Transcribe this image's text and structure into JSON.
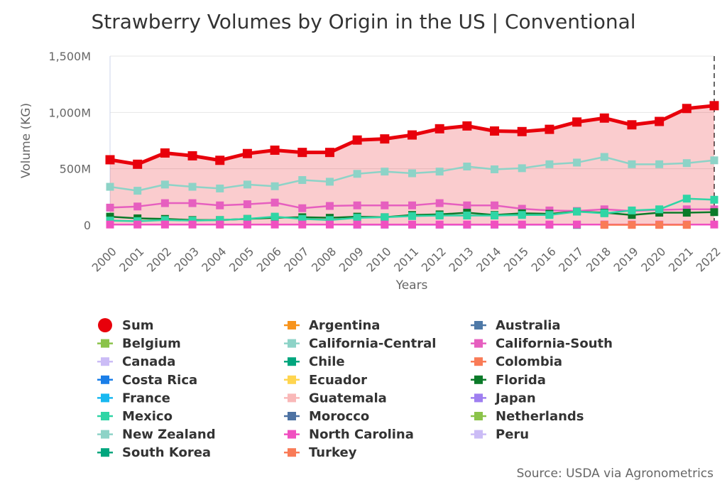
{
  "chart_data": {
    "type": "line",
    "title": "Strawberry Volumes by Origin in the US | Conventional",
    "xlabel": "Years",
    "ylabel": "Volume (KG)",
    "ylim": [
      0,
      1500000000
    ],
    "y_ticks": [
      {
        "value": 0,
        "label": "0"
      },
      {
        "value": 500000000,
        "label": "500M"
      },
      {
        "value": 1000000000,
        "label": "1,000M"
      },
      {
        "value": 1500000000,
        "label": "1,500M"
      }
    ],
    "x": [
      "2000",
      "2001",
      "2002",
      "2003",
      "2004",
      "2005",
      "2006",
      "2007",
      "2008",
      "2009",
      "2010",
      "2011",
      "2012",
      "2013",
      "2014",
      "2015",
      "2016",
      "2017",
      "2018",
      "2019",
      "2020",
      "2021",
      "2022"
    ],
    "grid": true,
    "legend_position": "bottom",
    "source": "Source: USDA via Agronometrics",
    "series": [
      {
        "name": "Sum",
        "color": "#e8000b",
        "marker": "circle",
        "area": true,
        "values": [
          580000000,
          540000000,
          640000000,
          615000000,
          575000000,
          635000000,
          665000000,
          645000000,
          645000000,
          755000000,
          765000000,
          800000000,
          855000000,
          880000000,
          835000000,
          830000000,
          850000000,
          915000000,
          950000000,
          890000000,
          920000000,
          1035000000,
          1060000000
        ]
      },
      {
        "name": "Argentina",
        "color": "#f7941d",
        "marker": "square",
        "values": [
          null,
          null,
          null,
          null,
          null,
          null,
          null,
          null,
          null,
          null,
          null,
          null,
          null,
          null,
          null,
          null,
          null,
          null,
          null,
          null,
          null,
          null,
          null
        ]
      },
      {
        "name": "Australia",
        "color": "#4e79a7",
        "marker": "square",
        "values": [
          null,
          null,
          null,
          null,
          null,
          null,
          null,
          null,
          null,
          null,
          null,
          null,
          null,
          null,
          null,
          null,
          null,
          null,
          null,
          null,
          null,
          null,
          null
        ]
      },
      {
        "name": "Belgium",
        "color": "#8bc34a",
        "marker": "square",
        "values": [
          null,
          null,
          null,
          null,
          null,
          null,
          null,
          null,
          null,
          null,
          null,
          null,
          null,
          null,
          null,
          null,
          null,
          null,
          null,
          null,
          null,
          null,
          null
        ]
      },
      {
        "name": "California-Central",
        "color": "#8dd3c7",
        "marker": "square",
        "values": [
          340000000,
          305000000,
          360000000,
          340000000,
          325000000,
          360000000,
          345000000,
          400000000,
          385000000,
          455000000,
          475000000,
          460000000,
          475000000,
          520000000,
          495000000,
          505000000,
          540000000,
          555000000,
          605000000,
          540000000,
          540000000,
          550000000,
          575000000
        ]
      },
      {
        "name": "California-South",
        "color": "#e65fbf",
        "marker": "square",
        "values": [
          155000000,
          165000000,
          195000000,
          195000000,
          175000000,
          185000000,
          200000000,
          150000000,
          170000000,
          175000000,
          175000000,
          175000000,
          195000000,
          175000000,
          175000000,
          145000000,
          130000000,
          125000000,
          140000000,
          125000000,
          135000000,
          140000000,
          140000000
        ]
      },
      {
        "name": "Canada",
        "color": "#cbbcf6",
        "marker": "square",
        "values": [
          null,
          null,
          null,
          null,
          null,
          null,
          null,
          null,
          null,
          2000000,
          2000000,
          2000000,
          2000000,
          2000000,
          2000000,
          2000000,
          2000000,
          null,
          null,
          null,
          null,
          null,
          null
        ]
      },
      {
        "name": "Chile",
        "color": "#00a67e",
        "marker": "square",
        "values": [
          null,
          null,
          null,
          null,
          null,
          null,
          null,
          null,
          null,
          null,
          null,
          null,
          null,
          null,
          null,
          null,
          null,
          2000000,
          null,
          null,
          null,
          null,
          null
        ]
      },
      {
        "name": "Colombia",
        "color": "#f97b57",
        "marker": "square",
        "values": [
          null,
          null,
          null,
          null,
          null,
          null,
          null,
          null,
          null,
          null,
          null,
          null,
          null,
          null,
          null,
          null,
          null,
          null,
          null,
          null,
          null,
          null,
          null
        ]
      },
      {
        "name": "Costa Rica",
        "color": "#1a7ee8",
        "marker": "square",
        "values": [
          null,
          null,
          null,
          null,
          null,
          null,
          null,
          null,
          null,
          null,
          null,
          null,
          null,
          null,
          null,
          null,
          null,
          null,
          null,
          null,
          null,
          null,
          null
        ]
      },
      {
        "name": "Ecuador",
        "color": "#ffd54f",
        "marker": "square",
        "values": [
          null,
          null,
          null,
          null,
          null,
          null,
          null,
          null,
          null,
          null,
          null,
          null,
          null,
          null,
          null,
          null,
          null,
          null,
          null,
          null,
          null,
          null,
          null
        ]
      },
      {
        "name": "Florida",
        "color": "#0b7a29",
        "marker": "square",
        "values": [
          75000000,
          60000000,
          55000000,
          45000000,
          45000000,
          55000000,
          65000000,
          70000000,
          65000000,
          75000000,
          70000000,
          90000000,
          95000000,
          110000000,
          90000000,
          105000000,
          100000000,
          120000000,
          110000000,
          90000000,
          110000000,
          110000000,
          115000000
        ]
      },
      {
        "name": "France",
        "color": "#19b8f0",
        "marker": "square",
        "values": [
          null,
          null,
          null,
          null,
          null,
          null,
          null,
          null,
          null,
          null,
          null,
          null,
          null,
          null,
          null,
          null,
          null,
          null,
          null,
          null,
          null,
          null,
          null
        ]
      },
      {
        "name": "Guatemala",
        "color": "#f9b8b8",
        "marker": "square",
        "values": [
          null,
          null,
          null,
          null,
          null,
          null,
          null,
          null,
          null,
          null,
          null,
          null,
          null,
          null,
          null,
          null,
          null,
          null,
          null,
          null,
          null,
          null,
          null
        ]
      },
      {
        "name": "Japan",
        "color": "#9f7ff0",
        "marker": "square",
        "values": [
          null,
          null,
          null,
          null,
          null,
          null,
          null,
          null,
          null,
          null,
          null,
          null,
          null,
          null,
          null,
          null,
          null,
          null,
          null,
          null,
          null,
          null,
          null
        ]
      },
      {
        "name": "Mexico",
        "color": "#2fd5a5",
        "marker": "square",
        "values": [
          40000000,
          35000000,
          45000000,
          40000000,
          45000000,
          55000000,
          75000000,
          55000000,
          45000000,
          65000000,
          70000000,
          80000000,
          85000000,
          85000000,
          85000000,
          90000000,
          90000000,
          120000000,
          105000000,
          130000000,
          140000000,
          235000000,
          225000000
        ]
      },
      {
        "name": "Morocco",
        "color": "#4d72a3",
        "marker": "square",
        "values": [
          null,
          null,
          null,
          null,
          null,
          null,
          null,
          null,
          null,
          null,
          null,
          null,
          null,
          null,
          null,
          null,
          null,
          null,
          null,
          null,
          null,
          null,
          null
        ]
      },
      {
        "name": "Netherlands",
        "color": "#8bc34a",
        "marker": "square",
        "values": [
          null,
          null,
          null,
          null,
          null,
          null,
          null,
          null,
          null,
          null,
          null,
          null,
          null,
          null,
          null,
          null,
          null,
          null,
          null,
          null,
          null,
          null,
          null
        ]
      },
      {
        "name": "New Zealand",
        "color": "#8dd3c7",
        "marker": "square",
        "values": [
          null,
          null,
          null,
          null,
          null,
          null,
          null,
          null,
          null,
          null,
          null,
          null,
          null,
          null,
          null,
          null,
          null,
          null,
          null,
          null,
          null,
          null,
          null
        ]
      },
      {
        "name": "North Carolina",
        "color": "#f050c0",
        "marker": "square",
        "values": [
          5000000,
          5000000,
          5000000,
          5000000,
          5000000,
          5000000,
          5000000,
          5000000,
          5000000,
          5000000,
          5000000,
          5000000,
          5000000,
          5000000,
          5000000,
          5000000,
          5000000,
          5000000,
          5000000,
          5000000,
          5000000,
          5000000,
          5000000
        ]
      },
      {
        "name": "Peru",
        "color": "#cbbcf6",
        "marker": "square",
        "values": [
          null,
          null,
          null,
          null,
          null,
          null,
          null,
          null,
          null,
          null,
          null,
          null,
          null,
          null,
          null,
          null,
          null,
          null,
          null,
          null,
          null,
          null,
          null
        ]
      },
      {
        "name": "South Korea",
        "color": "#00a67e",
        "marker": "square",
        "values": [
          null,
          null,
          null,
          null,
          null,
          null,
          null,
          null,
          null,
          null,
          null,
          null,
          null,
          null,
          null,
          null,
          null,
          null,
          null,
          null,
          null,
          null,
          null
        ]
      },
      {
        "name": "Turkey",
        "color": "#f97b57",
        "marker": "square",
        "values": [
          null,
          null,
          null,
          null,
          null,
          null,
          null,
          null,
          null,
          null,
          null,
          null,
          null,
          null,
          null,
          null,
          null,
          null,
          2000000,
          2000000,
          2000000,
          2000000,
          null
        ]
      }
    ]
  }
}
